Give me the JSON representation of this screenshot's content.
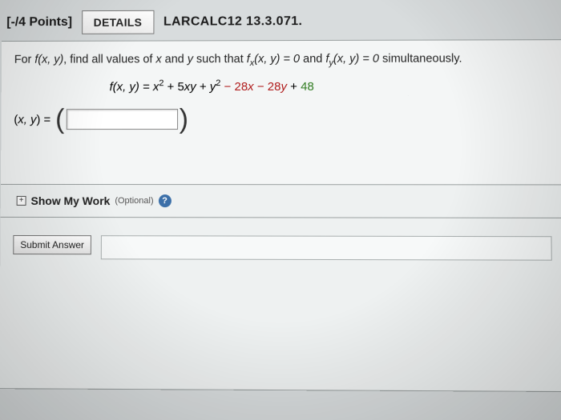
{
  "header": {
    "points_label": "[-/4 Points]",
    "details_label": "DETAILS",
    "problem_code": "LARCALC12 13.3.071."
  },
  "instruction": {
    "prefix": "For ",
    "fxy": "f(x, y)",
    "mid": ", find all values of ",
    "x": "x",
    "and": " and ",
    "y": "y",
    "such": " such that ",
    "fx": "f",
    "fx_sub": "x",
    "fx_args": "(x, y) = 0",
    "and2": " and ",
    "fy": "f",
    "fy_sub": "y",
    "fy_args": "(x, y) = 0",
    "tail": " simultaneously."
  },
  "equation": {
    "lhs": "f(x, y) = ",
    "x2_base": "x",
    "x2_exp": "2",
    "plus1": " + 5",
    "xy": "xy",
    "plus2": " + ",
    "y2_base": "y",
    "y2_exp": "2",
    "minus1": " − 28",
    "x_neg": "x",
    "minus2": " − 28",
    "y_neg": "y",
    "plus3": " + ",
    "const": "48"
  },
  "answer": {
    "label_open": "(",
    "label_xy": "x, y",
    "label_close": ") = "
  },
  "show_work": {
    "plus": "+",
    "label": "Show My Work",
    "optional": "(Optional)",
    "help": "?"
  },
  "submit": {
    "label": "Submit Answer"
  },
  "colors": {
    "negative": "#b01c1c",
    "constant": "#2e7a1e",
    "background": "#eef1f1"
  }
}
